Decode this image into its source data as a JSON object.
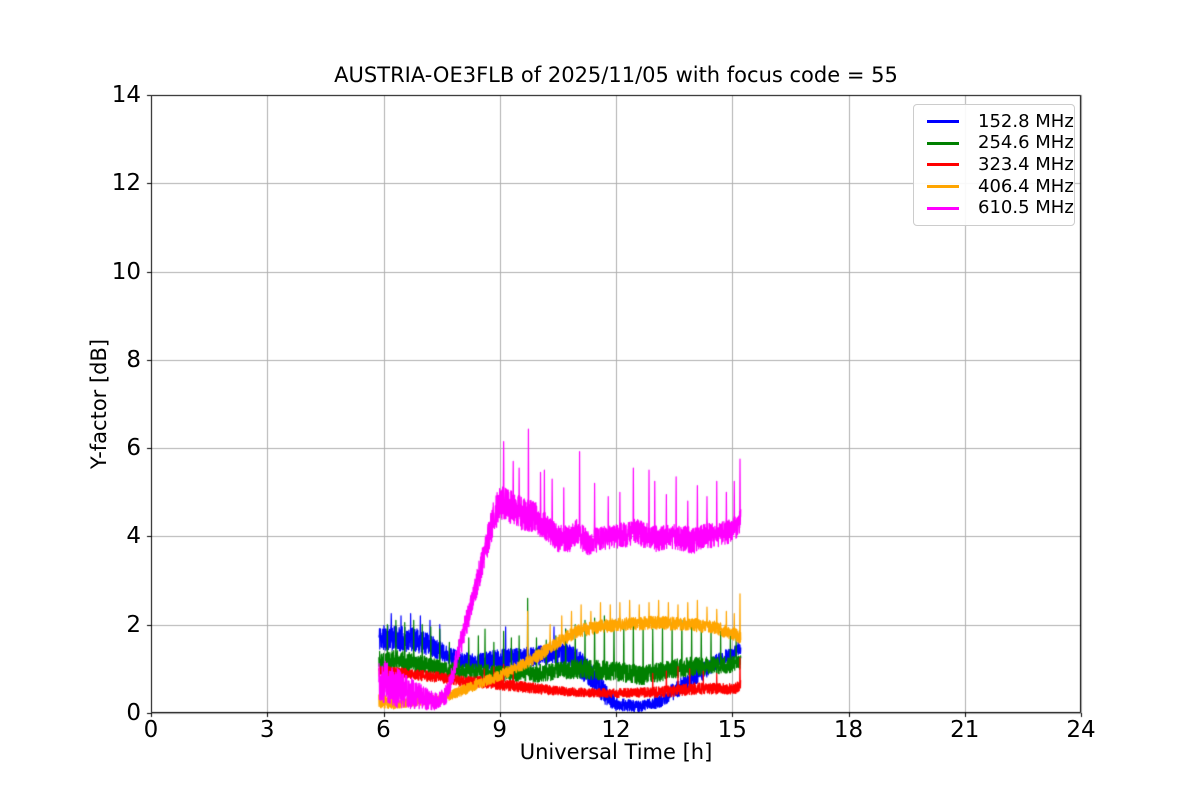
{
  "chart_data": {
    "type": "line",
    "title": "AUSTRIA-OE3FLB of 2025/11/05 with focus code = 55",
    "xlabel": "Universal Time [h]",
    "ylabel": "Y-factor [dB]",
    "xlim": [
      0,
      24
    ],
    "ylim": [
      0,
      14
    ],
    "xticks": [
      0,
      3,
      6,
      9,
      12,
      15,
      18,
      21,
      24
    ],
    "yticks": [
      0,
      2,
      4,
      6,
      8,
      10,
      12,
      14
    ],
    "grid": true,
    "grid_color": "#b0b0b0",
    "spine_color": "#000000",
    "legend_position": "upper right",
    "data_time_range_h": [
      5.88,
      15.22
    ],
    "sample_step_h": 0.004,
    "series": [
      {
        "name": "152.8 MHz",
        "color": "#0000ff",
        "seed": 11,
        "keypoints": [
          [
            5.88,
            1.7,
            0.3
          ],
          [
            6.3,
            1.7,
            0.28
          ],
          [
            6.8,
            1.65,
            0.28
          ],
          [
            7.2,
            1.55,
            0.25
          ],
          [
            7.6,
            1.35,
            0.2
          ],
          [
            8.0,
            1.2,
            0.18
          ],
          [
            8.5,
            1.15,
            0.2
          ],
          [
            9.0,
            1.2,
            0.25
          ],
          [
            9.5,
            1.25,
            0.22
          ],
          [
            10.0,
            1.3,
            0.22
          ],
          [
            10.5,
            1.35,
            0.25
          ],
          [
            10.9,
            1.25,
            0.3
          ],
          [
            11.3,
            0.9,
            0.3
          ],
          [
            11.7,
            0.45,
            0.25
          ],
          [
            12.0,
            0.2,
            0.15
          ],
          [
            12.6,
            0.15,
            0.12
          ],
          [
            13.1,
            0.25,
            0.15
          ],
          [
            13.5,
            0.5,
            0.2
          ],
          [
            14.0,
            0.8,
            0.2
          ],
          [
            14.5,
            1.1,
            0.2
          ],
          [
            15.0,
            1.35,
            0.15
          ],
          [
            15.22,
            1.45,
            0.12
          ]
        ],
        "spikes": [
          [
            6.2,
            2.25
          ],
          [
            6.45,
            2.2
          ],
          [
            6.7,
            2.25
          ],
          [
            6.95,
            2.2
          ],
          [
            7.2,
            2.1
          ],
          [
            7.45,
            2.0
          ],
          [
            9.15,
            1.95
          ],
          [
            10.4,
            1.95
          ],
          [
            10.7,
            1.9
          ],
          [
            15.15,
            1.6
          ]
        ]
      },
      {
        "name": "254.6 MHz",
        "color": "#008000",
        "seed": 22,
        "keypoints": [
          [
            5.88,
            1.2,
            0.25
          ],
          [
            6.5,
            1.15,
            0.25
          ],
          [
            7.0,
            1.1,
            0.22
          ],
          [
            7.5,
            1.0,
            0.18
          ],
          [
            8.0,
            0.95,
            0.18
          ],
          [
            9.0,
            0.9,
            0.18
          ],
          [
            10.0,
            0.9,
            0.2
          ],
          [
            10.5,
            0.95,
            0.2
          ],
          [
            11.0,
            1.0,
            0.22
          ],
          [
            12.0,
            0.95,
            0.22
          ],
          [
            12.7,
            0.85,
            0.22
          ],
          [
            13.5,
            1.0,
            0.22
          ],
          [
            14.0,
            1.05,
            0.22
          ],
          [
            15.0,
            1.1,
            0.18
          ],
          [
            15.22,
            1.15,
            0.15
          ]
        ],
        "spikes": [
          [
            6.1,
            2.0
          ],
          [
            6.32,
            2.1
          ],
          [
            6.55,
            2.05
          ],
          [
            6.78,
            2.1
          ],
          [
            7.0,
            2.0
          ],
          [
            7.22,
            1.95
          ],
          [
            7.45,
            1.9
          ],
          [
            7.7,
            1.6
          ],
          [
            7.95,
            1.65
          ],
          [
            8.2,
            1.7
          ],
          [
            8.45,
            1.75
          ],
          [
            8.62,
            1.9
          ],
          [
            8.85,
            1.6
          ],
          [
            9.1,
            1.85
          ],
          [
            9.3,
            1.7
          ],
          [
            9.5,
            1.75
          ],
          [
            9.72,
            2.6
          ],
          [
            9.95,
            1.7
          ],
          [
            10.2,
            1.65
          ],
          [
            10.45,
            1.75
          ],
          [
            10.7,
            1.9
          ],
          [
            10.95,
            2.0
          ],
          [
            11.2,
            2.1
          ],
          [
            11.45,
            2.15
          ],
          [
            11.7,
            2.2
          ],
          [
            11.95,
            2.1
          ],
          [
            12.2,
            2.0
          ],
          [
            12.45,
            2.1
          ],
          [
            12.7,
            2.05
          ],
          [
            12.95,
            1.9
          ],
          [
            13.2,
            2.0
          ],
          [
            13.45,
            2.05
          ],
          [
            13.7,
            2.1
          ],
          [
            13.95,
            1.95
          ],
          [
            14.2,
            2.0
          ],
          [
            14.45,
            1.9
          ],
          [
            14.7,
            1.85
          ],
          [
            14.95,
            1.75
          ],
          [
            15.1,
            1.7
          ]
        ]
      },
      {
        "name": "323.4 MHz",
        "color": "#ff0000",
        "seed": 33,
        "keypoints": [
          [
            5.88,
            0.95,
            0.12
          ],
          [
            6.5,
            0.9,
            0.12
          ],
          [
            7.0,
            0.85,
            0.12
          ],
          [
            7.5,
            0.8,
            0.12
          ],
          [
            8.0,
            0.72,
            0.12
          ],
          [
            8.5,
            0.7,
            0.13
          ],
          [
            9.0,
            0.65,
            0.13
          ],
          [
            9.5,
            0.6,
            0.12
          ],
          [
            10.0,
            0.55,
            0.12
          ],
          [
            10.5,
            0.5,
            0.1
          ],
          [
            11.0,
            0.47,
            0.1
          ],
          [
            12.0,
            0.45,
            0.1
          ],
          [
            13.0,
            0.47,
            0.12
          ],
          [
            13.5,
            0.5,
            0.13
          ],
          [
            14.0,
            0.55,
            0.13
          ],
          [
            15.0,
            0.55,
            0.12
          ],
          [
            15.22,
            0.6,
            0.15
          ]
        ],
        "spikes": [
          [
            8.6,
            1.0
          ],
          [
            8.85,
            1.05
          ],
          [
            9.1,
            1.1
          ],
          [
            9.35,
            1.0
          ],
          [
            12.95,
            0.9
          ],
          [
            13.3,
            0.95
          ],
          [
            13.6,
            1.05
          ],
          [
            13.9,
            1.0
          ],
          [
            14.25,
            0.95
          ],
          [
            14.6,
            0.9
          ],
          [
            15.2,
            1.25
          ]
        ]
      },
      {
        "name": "406.4 MHz",
        "color": "#ffa500",
        "seed": 44,
        "keypoints": [
          [
            5.88,
            0.3,
            0.18
          ],
          [
            6.3,
            0.2,
            0.12
          ],
          [
            7.0,
            0.28,
            0.1
          ],
          [
            7.5,
            0.33,
            0.1
          ],
          [
            8.0,
            0.5,
            0.12
          ],
          [
            8.5,
            0.68,
            0.12
          ],
          [
            9.0,
            0.85,
            0.13
          ],
          [
            9.5,
            1.05,
            0.13
          ],
          [
            10.0,
            1.3,
            0.15
          ],
          [
            10.5,
            1.6,
            0.15
          ],
          [
            11.0,
            1.85,
            0.15
          ],
          [
            11.5,
            1.95,
            0.15
          ],
          [
            12.0,
            2.0,
            0.15
          ],
          [
            13.0,
            2.05,
            0.15
          ],
          [
            14.0,
            2.0,
            0.15
          ],
          [
            14.5,
            1.95,
            0.15
          ],
          [
            15.0,
            1.8,
            0.15
          ],
          [
            15.22,
            1.7,
            0.15
          ]
        ],
        "spikes": [
          [
            9.72,
            2.3
          ],
          [
            10.3,
            2.0
          ],
          [
            10.6,
            2.2
          ],
          [
            10.85,
            2.3
          ],
          [
            11.1,
            2.45
          ],
          [
            11.35,
            2.3
          ],
          [
            11.6,
            2.5
          ],
          [
            11.85,
            2.45
          ],
          [
            12.1,
            2.5
          ],
          [
            12.35,
            2.55
          ],
          [
            12.6,
            2.45
          ],
          [
            12.85,
            2.5
          ],
          [
            13.1,
            2.55
          ],
          [
            13.35,
            2.5
          ],
          [
            13.6,
            2.45
          ],
          [
            13.85,
            2.5
          ],
          [
            14.1,
            2.55
          ],
          [
            14.35,
            2.4
          ],
          [
            14.6,
            2.35
          ],
          [
            14.85,
            2.3
          ],
          [
            15.05,
            2.25
          ],
          [
            15.2,
            2.7
          ]
        ]
      },
      {
        "name": "610.5 MHz",
        "color": "#ff00ff",
        "seed": 55,
        "keypoints": [
          [
            5.88,
            0.75,
            0.5
          ],
          [
            6.4,
            0.55,
            0.45
          ],
          [
            7.0,
            0.35,
            0.28
          ],
          [
            7.4,
            0.25,
            0.18
          ],
          [
            7.65,
            0.45,
            0.22
          ],
          [
            8.0,
            1.6,
            0.3
          ],
          [
            8.4,
            2.9,
            0.32
          ],
          [
            8.8,
            4.3,
            0.38
          ],
          [
            9.0,
            4.8,
            0.42
          ],
          [
            9.3,
            4.65,
            0.38
          ],
          [
            9.6,
            4.5,
            0.38
          ],
          [
            9.9,
            4.45,
            0.35
          ],
          [
            10.2,
            4.2,
            0.32
          ],
          [
            10.5,
            3.95,
            0.3
          ],
          [
            10.8,
            3.95,
            0.3
          ],
          [
            11.0,
            4.1,
            0.3
          ],
          [
            11.25,
            3.85,
            0.3
          ],
          [
            11.6,
            3.95,
            0.28
          ],
          [
            12.0,
            4.0,
            0.28
          ],
          [
            12.5,
            4.1,
            0.3
          ],
          [
            13.0,
            3.95,
            0.3
          ],
          [
            13.5,
            4.0,
            0.28
          ],
          [
            14.0,
            3.9,
            0.3
          ],
          [
            14.3,
            4.0,
            0.28
          ],
          [
            14.7,
            4.05,
            0.28
          ],
          [
            15.0,
            4.15,
            0.28
          ],
          [
            15.22,
            4.35,
            0.3
          ]
        ],
        "spikes": [
          [
            9.1,
            6.15
          ],
          [
            9.35,
            5.7
          ],
          [
            9.5,
            5.55
          ],
          [
            9.74,
            6.43
          ],
          [
            10.05,
            5.45
          ],
          [
            10.15,
            5.5
          ],
          [
            10.35,
            5.3
          ],
          [
            10.65,
            5.1
          ],
          [
            11.06,
            5.92
          ],
          [
            11.45,
            5.2
          ],
          [
            11.8,
            4.9
          ],
          [
            12.1,
            5.0
          ],
          [
            12.45,
            5.55
          ],
          [
            12.85,
            5.5
          ],
          [
            13.0,
            5.25
          ],
          [
            13.3,
            4.95
          ],
          [
            13.55,
            5.35
          ],
          [
            13.85,
            4.8
          ],
          [
            14.1,
            5.15
          ],
          [
            14.35,
            4.9
          ],
          [
            14.6,
            5.25
          ],
          [
            14.85,
            5.0
          ],
          [
            15.05,
            5.25
          ],
          [
            15.2,
            5.75
          ]
        ]
      }
    ]
  }
}
